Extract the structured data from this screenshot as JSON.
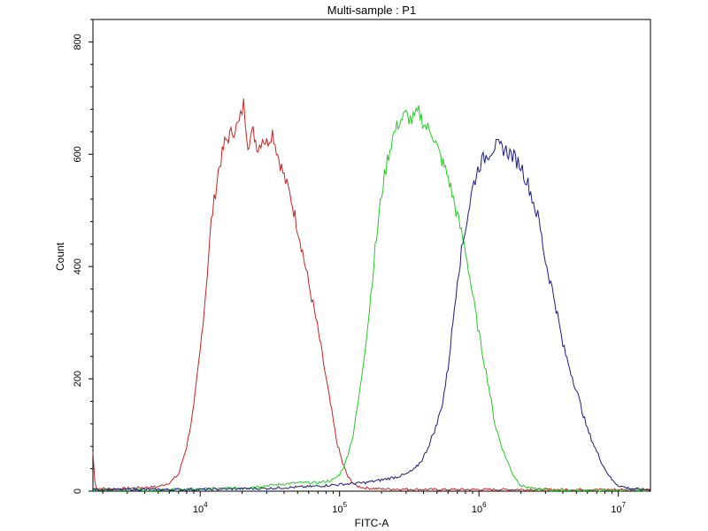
{
  "chart_data": {
    "type": "line",
    "title": "Multi-sample : P1",
    "xlabel": "FITC-A",
    "ylabel": "Count",
    "x_scale": "log",
    "xlim": [
      1700,
      17000000
    ],
    "ylim": [
      0,
      840
    ],
    "yticks": [
      {
        "value": 0,
        "label": "0"
      },
      {
        "value": 200,
        "label": "200"
      },
      {
        "value": 400,
        "label": "400"
      },
      {
        "value": 600,
        "label": "600"
      },
      {
        "value": 800,
        "label": "800"
      }
    ],
    "xticks": [
      {
        "value": 10000,
        "base": "10",
        "exp": "4"
      },
      {
        "value": 100000,
        "base": "10",
        "exp": "5"
      },
      {
        "value": 1000000,
        "base": "10",
        "exp": "6"
      },
      {
        "value": 10000000,
        "base": "10",
        "exp": "7"
      }
    ],
    "grid": false,
    "series": [
      {
        "color": "#cc2020",
        "x": [
          1700,
          1750,
          1800,
          2500,
          3500,
          5000,
          6000,
          7000,
          8000,
          9000,
          10000,
          11000,
          12000,
          13500,
          15000,
          17000,
          19000,
          20500,
          22000,
          24000,
          26000,
          28000,
          30000,
          33000,
          36000,
          40000,
          45000,
          52000,
          60000,
          66000,
          72000,
          80000,
          88000,
          95000,
          105000,
          115000,
          130000,
          150000,
          200000,
          500000,
          1000000,
          5000000,
          17000000
        ],
        "y": [
          70,
          20,
          5,
          4,
          6,
          8,
          15,
          30,
          80,
          150,
          250,
          360,
          480,
          570,
          620,
          640,
          655,
          690,
          620,
          640,
          610,
          630,
          620,
          640,
          600,
          560,
          520,
          450,
          370,
          320,
          270,
          200,
          140,
          90,
          50,
          25,
          10,
          6,
          4,
          3,
          3,
          3,
          3
        ]
      },
      {
        "color": "#22cc22",
        "x": [
          1700,
          5000,
          10000,
          20000,
          30000,
          50000,
          70000,
          90000,
          100000,
          110000,
          125000,
          140000,
          160000,
          180000,
          200000,
          220000,
          240000,
          270000,
          300000,
          330000,
          370000,
          410000,
          460000,
          520000,
          600000,
          700000,
          800000,
          900000,
          1000000,
          1150000,
          1300000,
          1500000,
          1750000,
          2000000,
          2500000,
          3000000,
          5000000,
          17000000
        ],
        "y": [
          2,
          3,
          4,
          6,
          10,
          15,
          15,
          20,
          30,
          50,
          100,
          180,
          300,
          430,
          530,
          590,
          630,
          660,
          670,
          660,
          675,
          650,
          640,
          600,
          560,
          490,
          430,
          350,
          280,
          200,
          120,
          70,
          30,
          10,
          4,
          2,
          2,
          2
        ]
      },
      {
        "color": "#1a1a8a",
        "x": [
          1700,
          10000,
          30000,
          60000,
          100000,
          150000,
          200000,
          250000,
          300000,
          350000,
          400000,
          450000,
          500000,
          550000,
          600000,
          650000,
          700000,
          800000,
          900000,
          1000000,
          1150000,
          1300000,
          1500000,
          1700000,
          2000000,
          2300000,
          2700000,
          3000000,
          3500000,
          4000000,
          5000000,
          6000000,
          7000000,
          8000000,
          9000000,
          10000000,
          12000000,
          15000000,
          17000000
        ],
        "y": [
          3,
          3,
          5,
          8,
          12,
          15,
          20,
          25,
          30,
          40,
          60,
          90,
          120,
          160,
          220,
          300,
          380,
          470,
          540,
          580,
          600,
          615,
          610,
          600,
          580,
          540,
          480,
          410,
          340,
          260,
          180,
          110,
          70,
          40,
          20,
          10,
          5,
          3,
          3
        ]
      }
    ]
  }
}
